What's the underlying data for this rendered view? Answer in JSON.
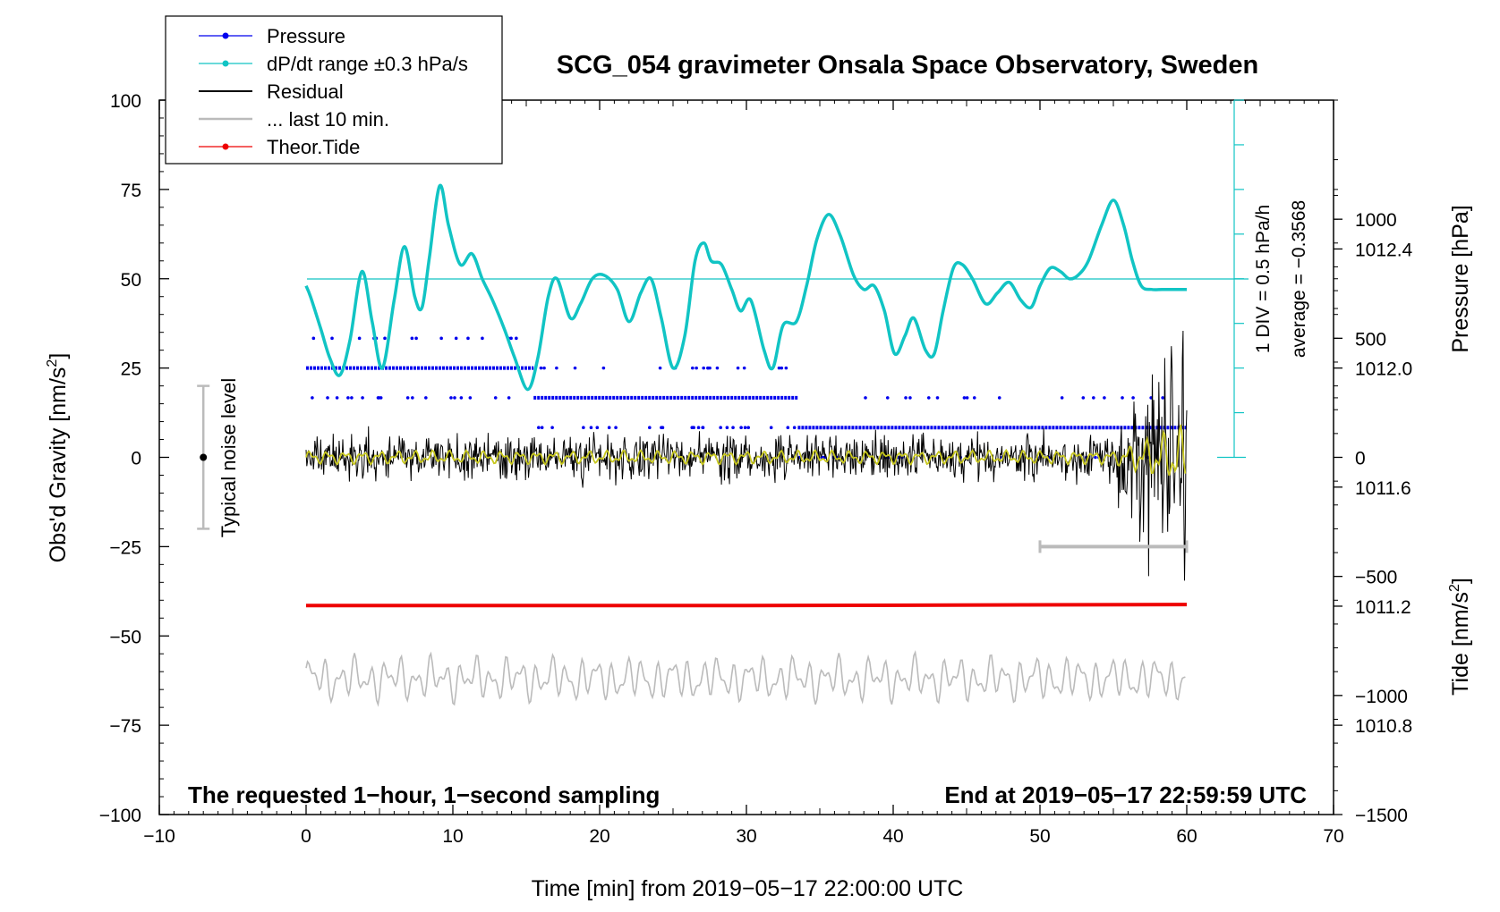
{
  "chart_data": {
    "type": "line",
    "title": "SCG_054 gravimeter Onsala Space Observatory, Sweden",
    "xlabel": "Time [min] from 2019−05−17 22:00:00 UTC",
    "ylabel_left": "Obs'd Gravity [nm/s",
    "ylabel_left_sup": "2",
    "ylabel_left_end": "]",
    "ylabel_right_pressure": "Pressure [hPa]",
    "ylabel_right_tide": "Tide [nm/s",
    "ylabel_right_tide_sup": "2",
    "ylabel_right_tide_end": "]",
    "xlim": [
      -10,
      70
    ],
    "ylim": [
      -100,
      100
    ],
    "pressure_axis_range": [
      1010.5,
      1012.9
    ],
    "tide_axis_range": [
      -1500,
      1500
    ],
    "x_ticks": [
      "−10",
      "0",
      "10",
      "20",
      "30",
      "40",
      "50",
      "60",
      "70"
    ],
    "y_ticks": [
      "100",
      "75",
      "50",
      "25",
      "0",
      "−25",
      "−50",
      "−75",
      "−100"
    ],
    "pressure_ticks": [
      "1012.4",
      "1012.0",
      "1011.6",
      "1011.2",
      "1010.8"
    ],
    "tide_ticks": [
      "1000",
      "500",
      "0",
      "−500",
      "−1000",
      "−1500"
    ],
    "legend": [
      {
        "label": "Pressure",
        "color": "#0000ee",
        "marker": true
      },
      {
        "label": "dP/dt range ±0.3 hPa/s",
        "color": "#11c4c4",
        "marker": true
      },
      {
        "label": "Residual",
        "color": "#000000",
        "marker": false
      },
      {
        "label": "... last 10 min.",
        "color": "#bbbbbb",
        "marker": false
      },
      {
        "label": "Theor.Tide",
        "color": "#ee0000",
        "marker": true
      }
    ],
    "annotations": {
      "left_bottom": "The requested 1−hour, 1−second sampling",
      "right_bottom": "End at 2019−05−17 22:59:59 UTC",
      "noise_label": "Typical noise level",
      "div_label": "1 DIV = 0.5 hPa/h",
      "average_label": "average = −0.3568"
    },
    "noise_bar": {
      "x": -7,
      "y_center": 0,
      "y_low": -20,
      "y_high": 20
    },
    "last10_bar": {
      "x_start": 50,
      "x_end": 60,
      "y": -25
    },
    "pressure_levels_hPa": [
      1011.7,
      1011.8,
      1011.9,
      1012.0,
      1012.1
    ],
    "pressure_segments": [
      {
        "level": 1012.0,
        "x_start": 0.0,
        "x_end": 15.5
      },
      {
        "level": 1011.9,
        "x_start": 15.5,
        "x_end": 33.5
      },
      {
        "level": 1011.8,
        "x_start": 33.5,
        "x_end": 60.0
      }
    ],
    "series": [
      {
        "name": "dP/dt",
        "color": "#11c4c4",
        "x": [
          0,
          0.3,
          1,
          1.6,
          2.3,
          3,
          3.8,
          4.5,
          5.2,
          6,
          6.7,
          7.4,
          7.9,
          8.4,
          9.1,
          9.7,
          10.5,
          11.3,
          12,
          12.7,
          13.5,
          14.2,
          15.1,
          15.8,
          16.5,
          17.1,
          18,
          18.7,
          19.5,
          20.3,
          21.2,
          22,
          22.8,
          23.5,
          24.2,
          25,
          25.8,
          26.5,
          27.1,
          27.6,
          28.3,
          29,
          29.6,
          30.3,
          31.2,
          31.8,
          32.5,
          33.4,
          34.1,
          34.8,
          35.6,
          36.4,
          37.3,
          38,
          38.7,
          39.4,
          40.1,
          40.8,
          41.4,
          42.2,
          42.8,
          43.4,
          44.1,
          44.7,
          45.4,
          46.3,
          47.1,
          47.9,
          48.7,
          49.4,
          50,
          50.7,
          51.4,
          52,
          52.6,
          53.3,
          54.2,
          55,
          55.7,
          56.3,
          56.9,
          57.6,
          58.3,
          59,
          60
        ],
        "y": [
          48,
          45,
          36,
          28,
          23,
          33,
          52,
          38,
          25,
          44,
          59,
          45,
          42,
          56,
          76,
          65,
          54,
          57,
          50,
          44,
          36,
          28,
          19,
          28,
          45,
          50,
          39,
          43,
          50,
          51,
          47,
          38,
          46,
          50,
          39,
          25,
          34,
          55,
          60,
          55,
          54,
          47,
          41,
          44,
          30,
          25,
          37,
          38,
          48,
          61,
          68,
          62,
          51,
          47,
          48,
          41,
          29,
          34,
          39,
          30,
          29,
          41,
          53,
          54,
          50,
          43,
          46,
          49,
          44,
          42,
          48,
          53,
          52,
          50,
          51,
          55,
          65,
          72,
          65,
          55,
          48,
          47,
          47,
          47,
          47
        ]
      },
      {
        "name": "Theor.Tide",
        "color": "#ee0000",
        "x": [
          0,
          30,
          60
        ],
        "y": [
          -41.5,
          -41.5,
          -41.2
        ]
      }
    ]
  }
}
